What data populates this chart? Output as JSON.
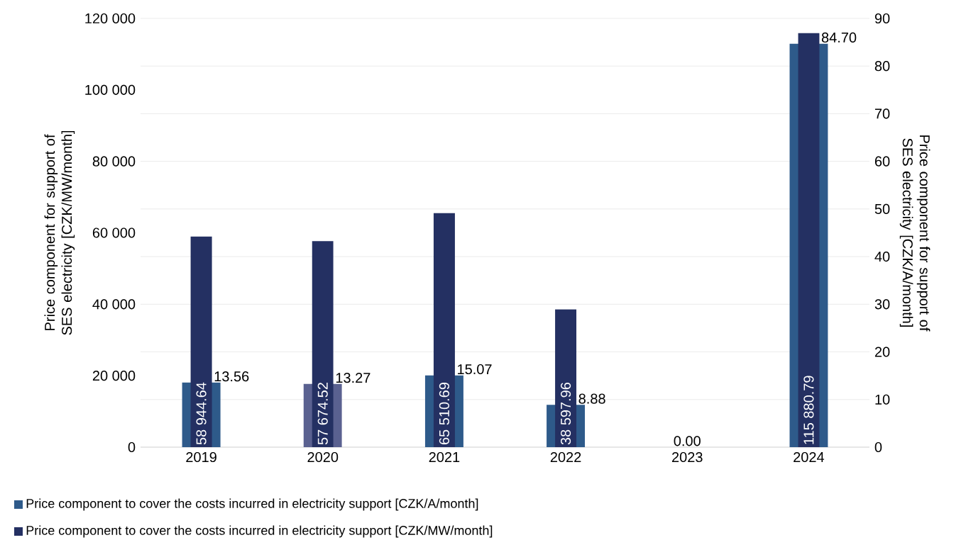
{
  "chart_data": {
    "type": "bar",
    "categories": [
      "2019",
      "2020",
      "2021",
      "2022",
      "2023",
      "2024"
    ],
    "series": [
      {
        "name": "Price component to cover the costs incurred in electricity support [CZK/A/month]",
        "axis": "y2",
        "color": "#2e5a8a",
        "colors": [
          "#2e5a8a",
          "#5a6190",
          "#2e5a8a",
          "#2e5a8a",
          "#2e5a8a",
          "#2e5a8a"
        ],
        "values": [
          13.56,
          13.27,
          15.07,
          8.88,
          0.0,
          84.7
        ],
        "value_labels": [
          "13.56",
          "13.27",
          "15.07",
          "8.88",
          "0.00",
          "84.70"
        ]
      },
      {
        "name": "Price component to cover the costs incurred in electricity support [CZK/MW/month]",
        "axis": "y",
        "color": "#243062",
        "values": [
          58944.64,
          57674.52,
          65510.69,
          38597.96,
          0,
          115880.79
        ],
        "value_labels": [
          "58 944.64",
          "57 674.52",
          "65 510.69",
          "38 597.96",
          null,
          "115 880.79"
        ]
      }
    ],
    "ylabel": "Price component for support of SES electricity [CZK/MW/month]",
    "y2label": "Price component for support of SES electricity [CZK/A/month]",
    "ylim": [
      0,
      120000
    ],
    "yticks": [
      0,
      {
        "value": 20000,
        "label": "20 000"
      },
      {
        "value": 40000,
        "label": "40 000"
      },
      {
        "value": 60000,
        "label": "60 000"
      },
      {
        "value": 80000,
        "label": "80 000"
      },
      {
        "value": 100000,
        "label": "100 000"
      },
      {
        "value": 120000,
        "label": "120 000"
      }
    ],
    "y2lim": [
      0,
      90
    ],
    "y2ticks": [
      0,
      10,
      20,
      30,
      40,
      50,
      60,
      70,
      80,
      90
    ],
    "grid": "y",
    "legend": "bottom"
  }
}
